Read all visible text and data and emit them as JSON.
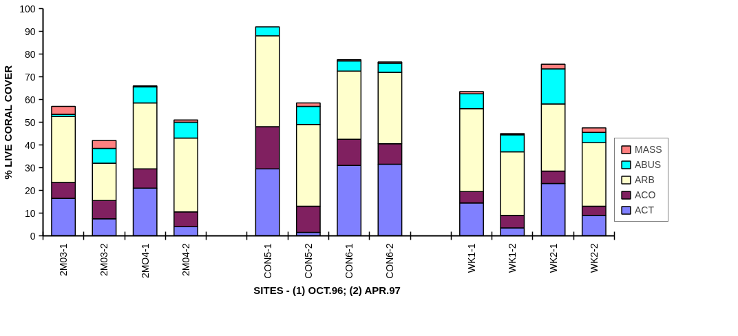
{
  "chart_data": {
    "type": "bar",
    "stacked": true,
    "xlabel": "SITES -  (1) OCT.96; (2) APR.97",
    "ylabel": "% LIVE CORAL COVER",
    "categories": [
      "2M03-1",
      "2M03-2",
      "2MO4-1",
      "2M04-2",
      null,
      "CON5-1",
      "CON5-2",
      "CON6-1",
      "CON6-2",
      null,
      "WK1-1",
      "WK1-2",
      "WK2-1",
      "WK2-2"
    ],
    "series": [
      {
        "name": "ACT",
        "color": "#8080ff",
        "values": [
          16.5,
          7.5,
          21,
          4,
          null,
          29.5,
          1.5,
          31,
          31.5,
          null,
          14.5,
          3.5,
          23,
          9
        ]
      },
      {
        "name": "ACO",
        "color": "#802060",
        "values": [
          7,
          8,
          8.5,
          6.5,
          null,
          18.5,
          11.5,
          11.5,
          9,
          null,
          5,
          5.5,
          5.5,
          4
        ]
      },
      {
        "name": "ARB",
        "color": "#ffffcc",
        "values": [
          29,
          16.5,
          29,
          32.5,
          null,
          40,
          36,
          30,
          31.5,
          null,
          36.5,
          28,
          29.5,
          28
        ]
      },
      {
        "name": "ABUS",
        "color": "#00ffff",
        "values": [
          1,
          6.5,
          7,
          7,
          null,
          4,
          8,
          4.5,
          4,
          null,
          6.5,
          7.5,
          15.5,
          4.5
        ]
      },
      {
        "name": "MASS",
        "color": "#ff8080",
        "values": [
          3.5,
          3.5,
          0.5,
          1,
          null,
          null,
          1.5,
          0.5,
          0.5,
          null,
          1,
          0.5,
          2,
          2
        ]
      }
    ],
    "ylim": [
      0,
      100
    ],
    "yticks": [
      0,
      10,
      20,
      30,
      40,
      50,
      60,
      70,
      80,
      90,
      100
    ],
    "grid": false,
    "legend": "right"
  }
}
